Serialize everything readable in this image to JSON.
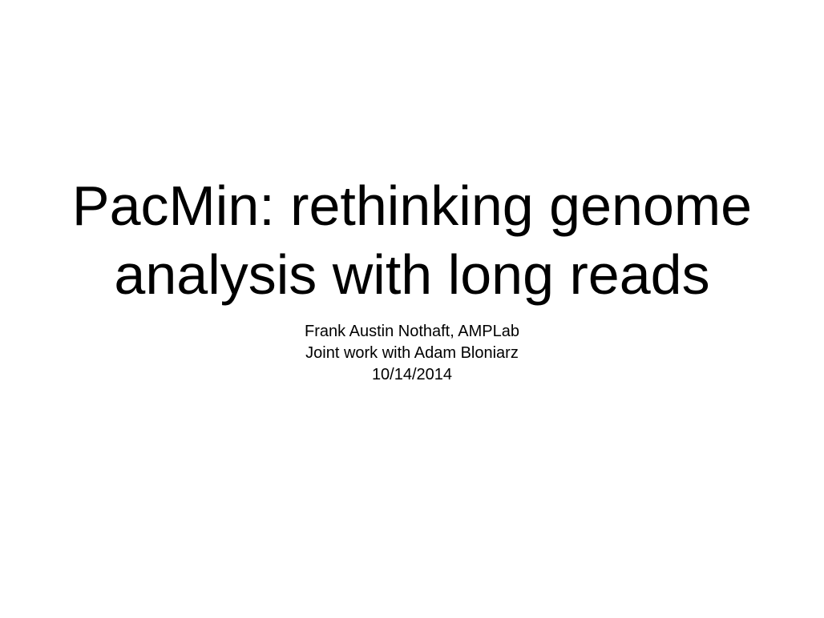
{
  "slide": {
    "title_lines": [
      "PacMin: rethinking genome",
      "analysis with long reads"
    ],
    "subtitle_lines": [
      "Frank Austin Nothaft, AMPLab",
      "Joint work with Adam Bloniarz",
      "10/14/2014"
    ]
  }
}
